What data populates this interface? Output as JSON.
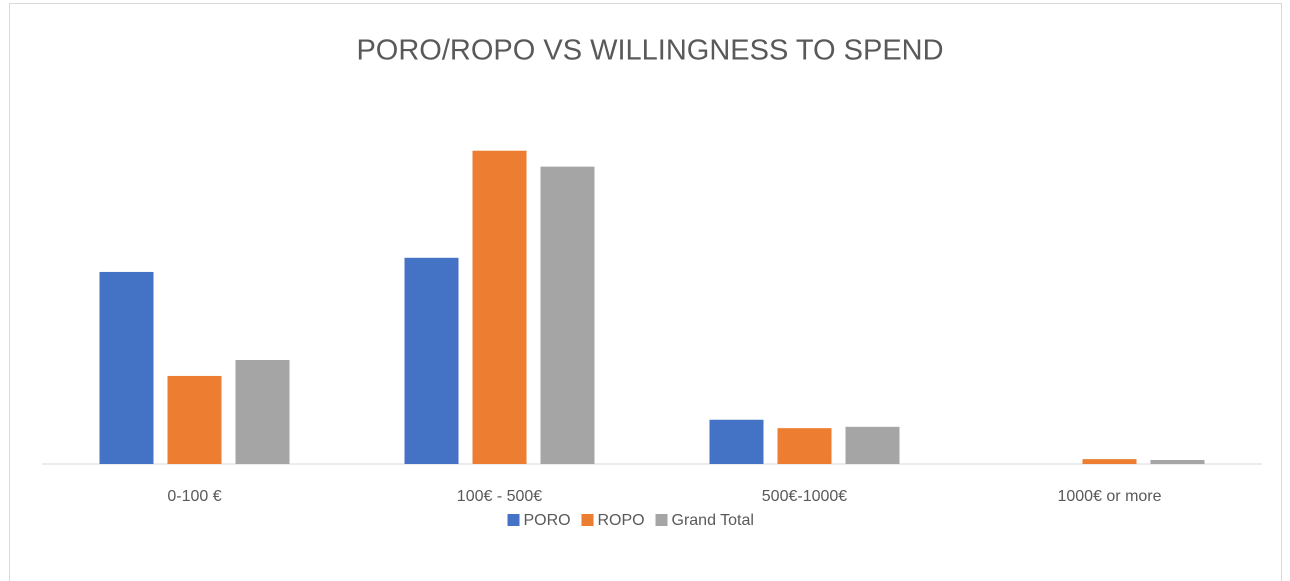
{
  "chart_data": {
    "type": "bar",
    "title": "PORO/ROPO VS WILLINGNESS TO SPEND",
    "categories": [
      "0-100 €",
      "100€ - 500€",
      "500€-1000€",
      "1000€ or more"
    ],
    "series": [
      {
        "name": "PORO",
        "color": "#4472c4",
        "values": [
          43.4,
          46.6,
          10.0,
          0
        ]
      },
      {
        "name": "ROPO",
        "color": "#ed7d31",
        "values": [
          19.9,
          70.8,
          8.1,
          1.1
        ]
      },
      {
        "name": "Grand Total",
        "color": "#a5a5a5",
        "values": [
          23.5,
          67.2,
          8.4,
          0.9
        ]
      }
    ],
    "ylim": [
      0,
      80
    ],
    "legend": "bottom"
  }
}
